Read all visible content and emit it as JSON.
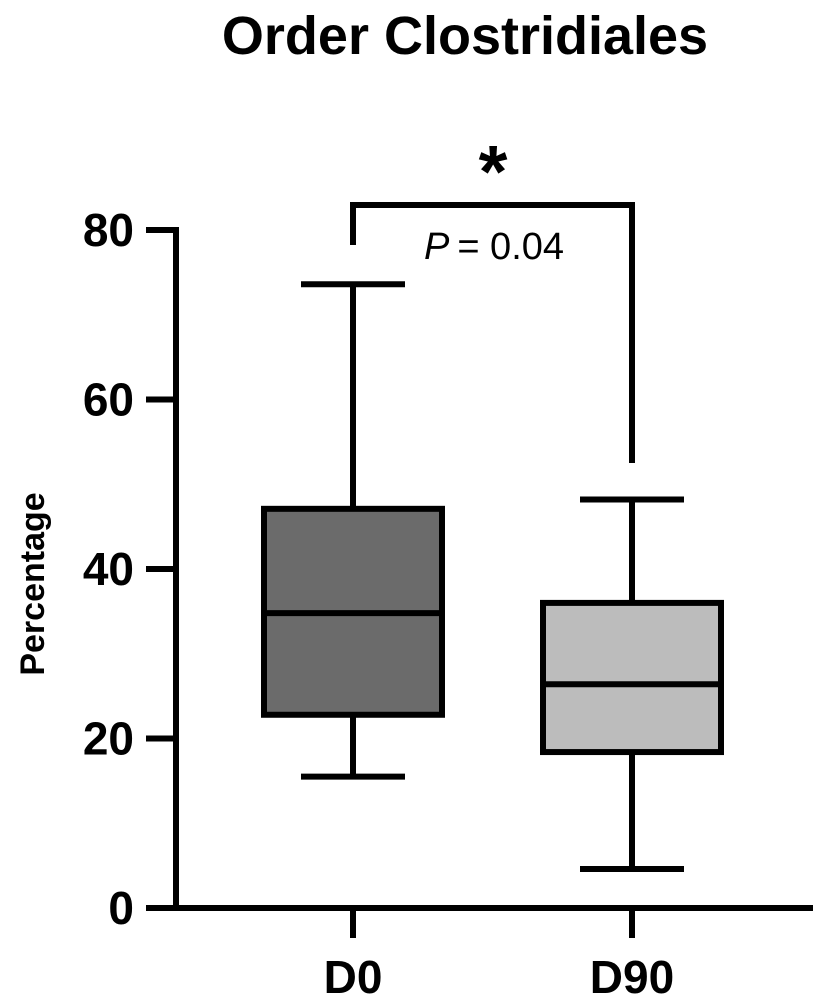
{
  "chart_data": {
    "type": "box",
    "title": "Order Clostridiales",
    "xlabel": "",
    "ylabel": "Percentage",
    "ylim": [
      0,
      80
    ],
    "yticks": [
      0,
      20,
      40,
      60,
      80
    ],
    "categories": [
      "D0",
      "D90"
    ],
    "boxes": [
      {
        "category": "D0",
        "min": 15.5,
        "q1": 22.8,
        "median": 34.8,
        "q3": 47.1,
        "max": 73.6,
        "fill": "#6b6b6b"
      },
      {
        "category": "D90",
        "min": 4.6,
        "q1": 18.4,
        "median": 26.4,
        "q3": 36.0,
        "max": 48.2,
        "fill": "#bcbcbc"
      }
    ],
    "annotation": {
      "significance": "*",
      "p_label": "P",
      "p_value_text": "= 0.04"
    },
    "grid": false,
    "legend": "none"
  }
}
